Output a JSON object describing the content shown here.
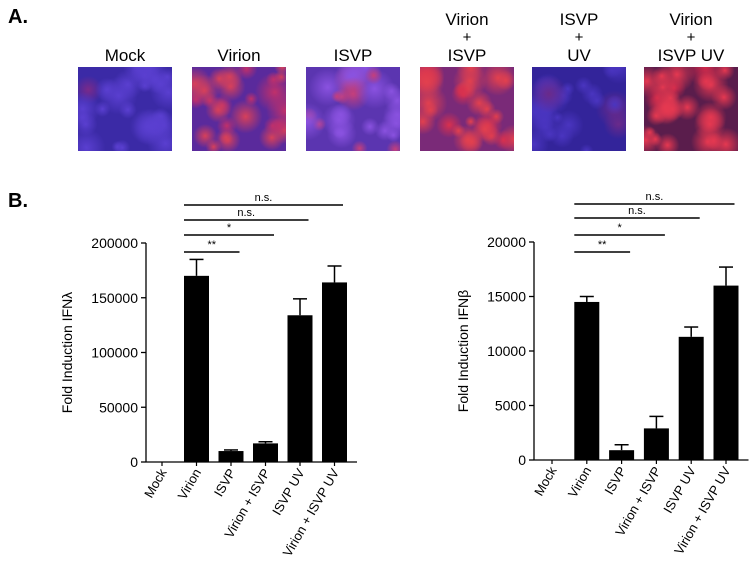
{
  "panel_a": {
    "label": "A.",
    "images": [
      {
        "title_lines": [
          "Mock"
        ],
        "colors": {
          "base": "#3b2aa6",
          "spot": "#5a3fd0",
          "warm": "#7a2a8a"
        },
        "red": 0.15
      },
      {
        "title_lines": [
          "Virion"
        ],
        "colors": {
          "base": "#5a2a9c",
          "spot": "#c0306a",
          "warm": "#d6405a"
        },
        "red": 0.55
      },
      {
        "title_lines": [
          "ISVP"
        ],
        "colors": {
          "base": "#5b35b0",
          "spot": "#c43f7c",
          "warm": "#8a52e0"
        },
        "red": 0.5
      },
      {
        "title_lines": [
          "Virion",
          "+",
          "ISVP"
        ],
        "colors": {
          "base": "#7a2a78",
          "spot": "#d8304e",
          "warm": "#e2404e"
        },
        "red": 0.8
      },
      {
        "title_lines": [
          "ISVP",
          "+",
          "UV"
        ],
        "colors": {
          "base": "#33249a",
          "spot": "#4a35c0",
          "warm": "#6a2a8a"
        },
        "red": 0.1
      },
      {
        "title_lines": [
          "Virion",
          "+",
          "ISVP UV"
        ],
        "colors": {
          "base": "#5a1d4c",
          "spot": "#d0284a",
          "warm": "#e53850"
        },
        "red": 0.85
      }
    ]
  },
  "panel_b": {
    "label": "B."
  },
  "chart_data": [
    {
      "type": "bar",
      "categories": [
        "Mock",
        "Virion",
        "ISVP",
        "Virion + ISVP",
        "ISVP UV",
        "Virion + ISVP UV"
      ],
      "values": [
        0,
        170000,
        10000,
        17000,
        134000,
        164000
      ],
      "errors": [
        0,
        15000,
        1000,
        1500,
        15000,
        15000
      ],
      "ylabel": "Fold Induction IFNλ",
      "ylim": [
        0,
        200000
      ],
      "yticks": [
        0,
        50000,
        100000,
        150000,
        200000
      ],
      "bar_color": "#000000",
      "significance": [
        {
          "from": 1,
          "to": 2,
          "label": "**"
        },
        {
          "from": 1,
          "to": 3,
          "label": "*"
        },
        {
          "from": 1,
          "to": 4,
          "label": "n.s."
        },
        {
          "from": 1,
          "to": 5,
          "label": "n.s."
        }
      ]
    },
    {
      "type": "bar",
      "categories": [
        "Mock",
        "Virion",
        "ISVP",
        "Virion + ISVP",
        "ISVP UV",
        "Virion + ISVP UV"
      ],
      "values": [
        0,
        14500,
        900,
        2900,
        11300,
        16000
      ],
      "errors": [
        0,
        500,
        500,
        1100,
        900,
        1700
      ],
      "ylabel": "Fold Induction IFNβ",
      "ylim": [
        0,
        20000
      ],
      "yticks": [
        0,
        5000,
        10000,
        15000,
        20000
      ],
      "bar_color": "#000000",
      "significance": [
        {
          "from": 1,
          "to": 2,
          "label": "**"
        },
        {
          "from": 1,
          "to": 3,
          "label": "*"
        },
        {
          "from": 1,
          "to": 4,
          "label": "n.s."
        },
        {
          "from": 1,
          "to": 5,
          "label": "n.s."
        }
      ]
    }
  ]
}
